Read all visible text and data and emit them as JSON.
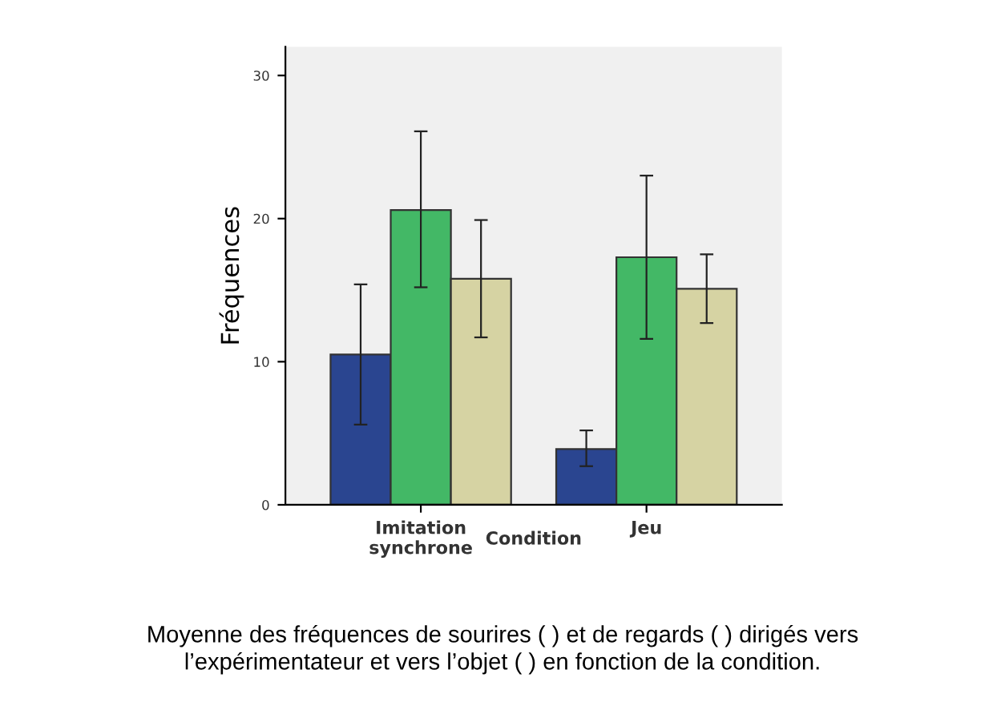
{
  "chart_data": {
    "type": "bar",
    "xlabel": "Condition",
    "ylabel": "Fréquences",
    "categories": [
      "Imitation\nsynchrone",
      "Jeu"
    ],
    "series": [
      {
        "color": "#2a4590",
        "values": [
          10.5,
          3.9
        ],
        "errors": [
          [
            5.6,
            15.4
          ],
          [
            2.7,
            5.2
          ]
        ]
      },
      {
        "color": "#43b866",
        "values": [
          20.6,
          17.3
        ],
        "errors": [
          [
            15.2,
            26.1
          ],
          [
            11.6,
            23.0
          ]
        ]
      },
      {
        "color": "#d6d3a3",
        "values": [
          15.8,
          15.1
        ],
        "errors": [
          [
            11.7,
            19.9
          ],
          [
            12.7,
            17.5
          ]
        ]
      }
    ],
    "ylim": [
      0,
      32
    ],
    "yticks": [
      0,
      10,
      20,
      30
    ],
    "grid": false,
    "legend": false,
    "annotations": [
      "Moyenne des fréquences de sourires ( ) et de regards ( ) dirigés vers\nl’expérimentateur et vers l’objet ( ) en fonction de la condition."
    ]
  }
}
